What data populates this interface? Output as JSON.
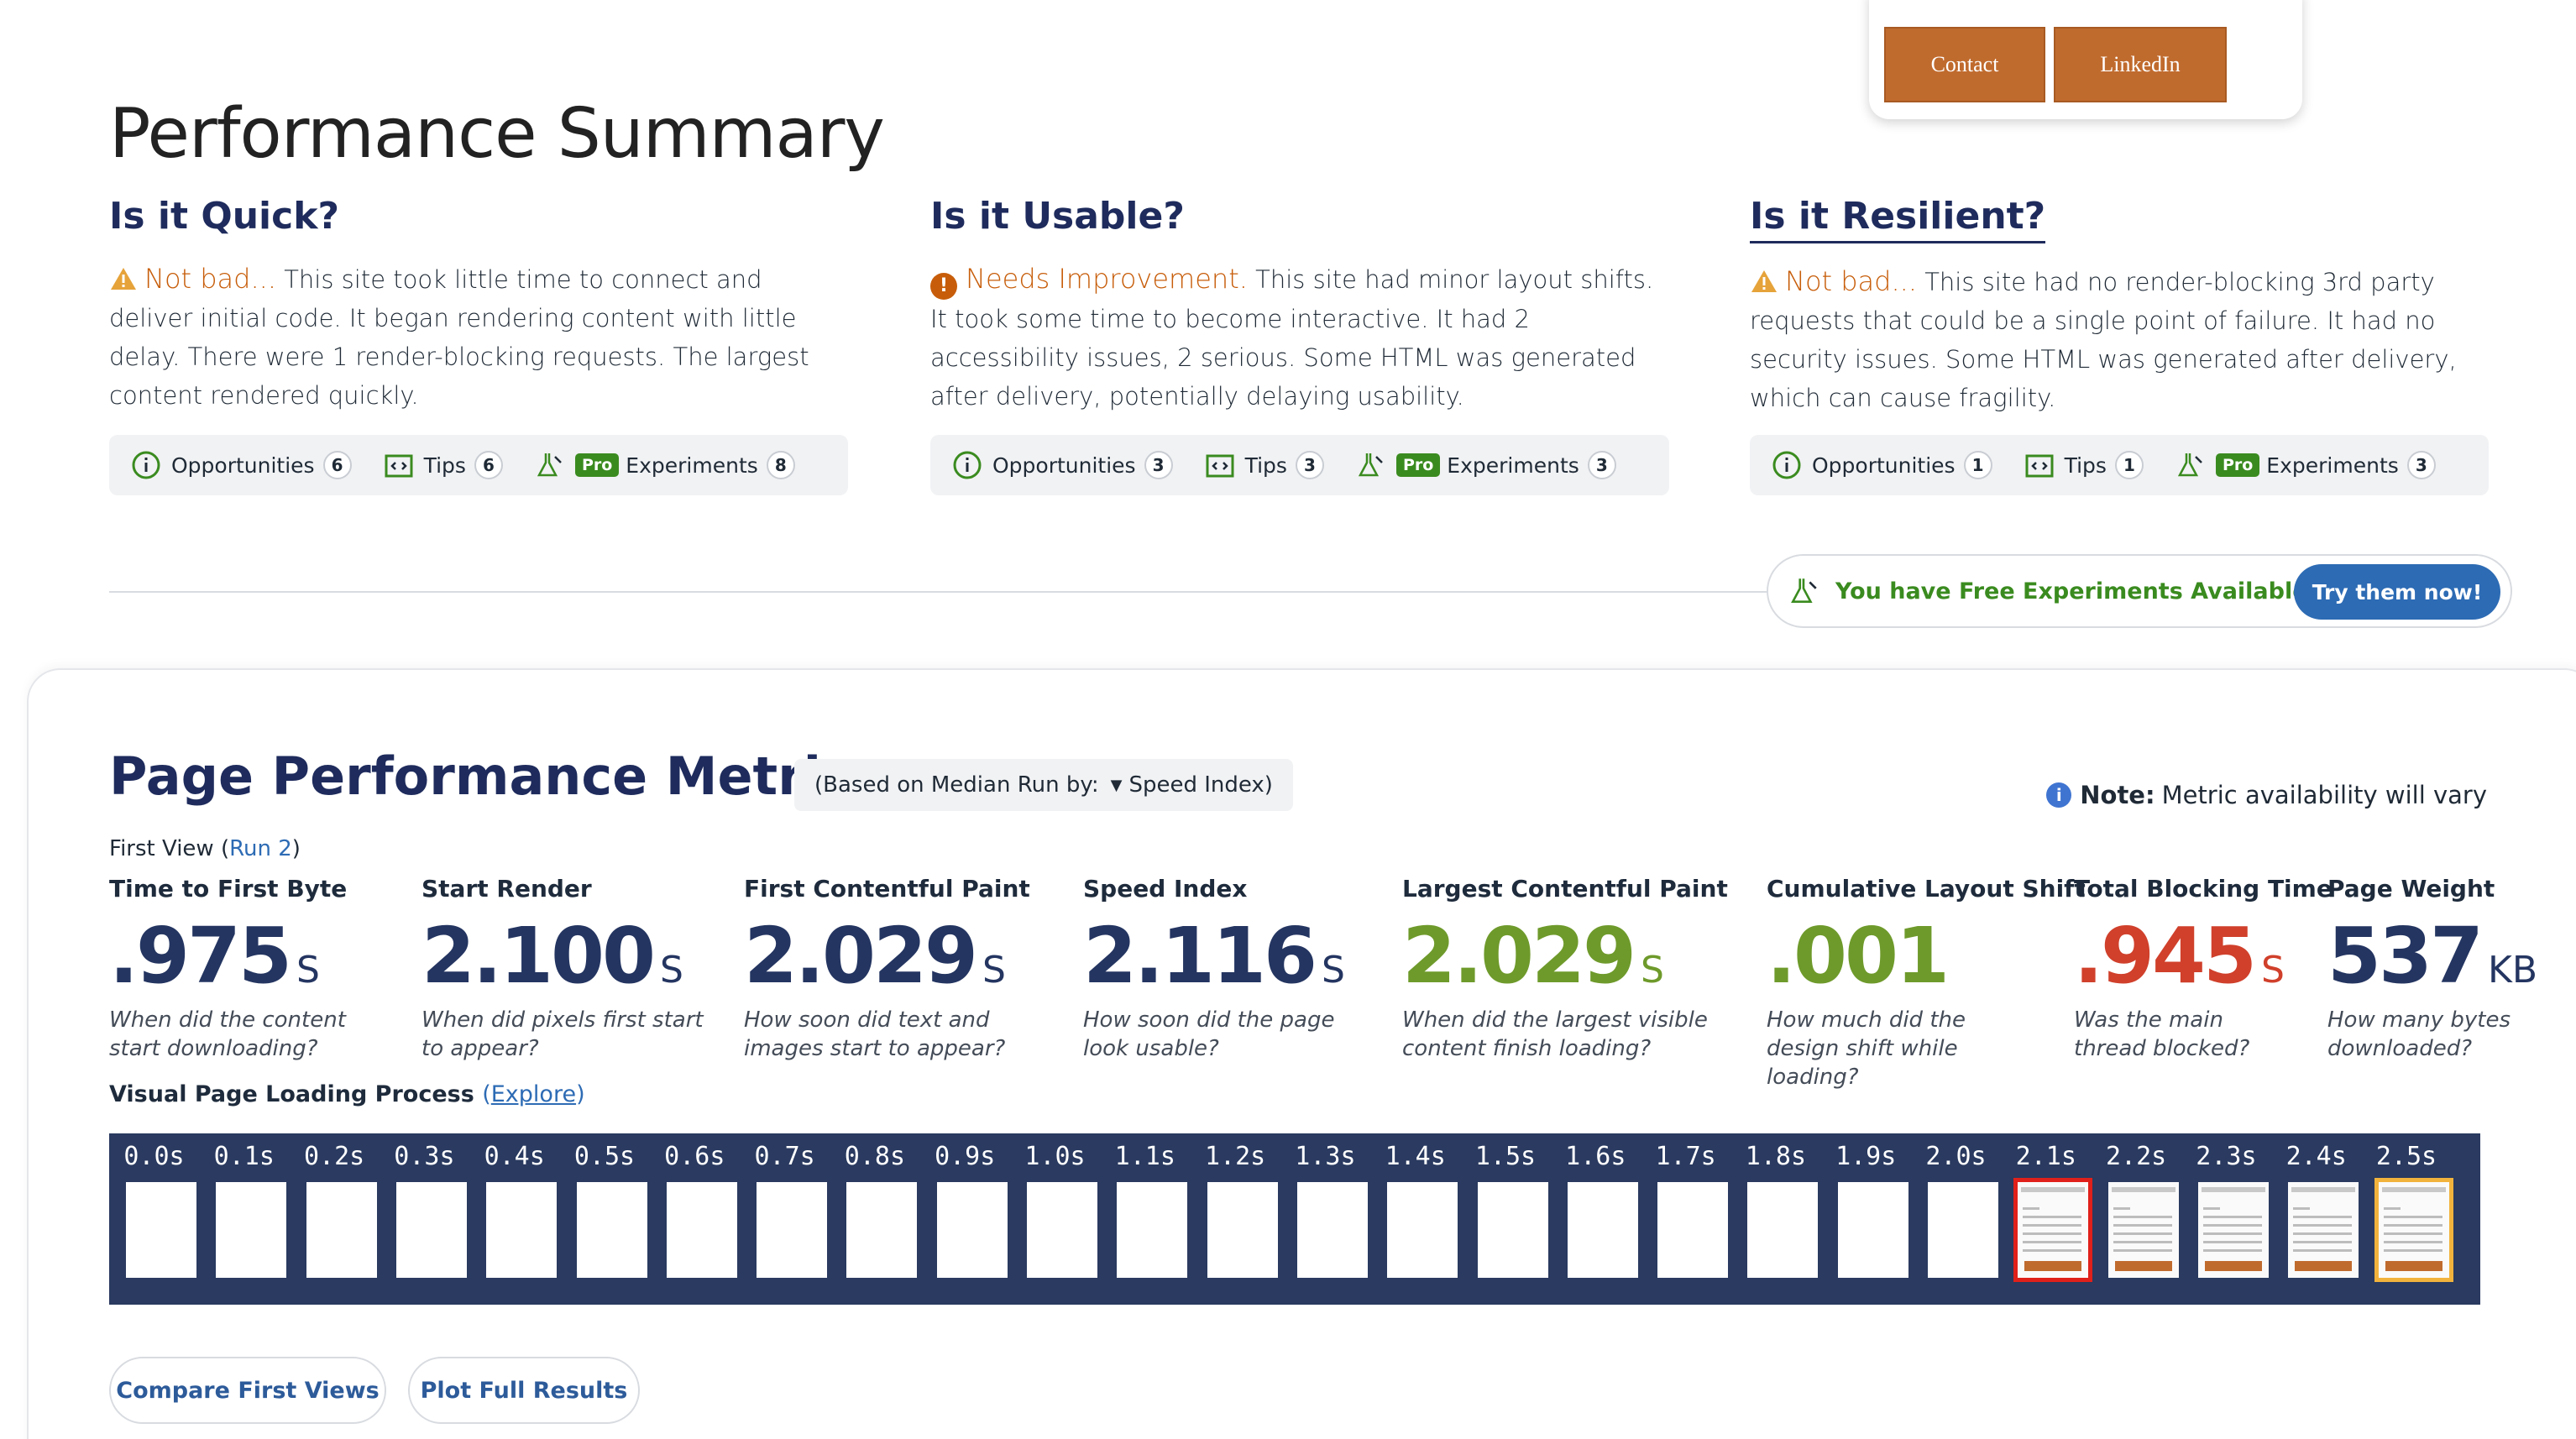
{
  "top_card": {
    "contact_label": "Contact",
    "linkedin_label": "LinkedIn"
  },
  "page_title": "Performance Summary",
  "summary": [
    {
      "heading": "Is it Quick?",
      "verdict": "Not bad...",
      "verdict_icon": "warning-triangle-icon",
      "text": "This site took little time to connect and deliver initial code. It began rendering content with little delay. There were 1 render-blocking requests. The largest content rendered quickly.",
      "opportunities_label": "Opportunities",
      "opportunities_count": "6",
      "tips_label": "Tips",
      "tips_count": "6",
      "pro_label": "Pro",
      "experiments_label": "Experiments",
      "experiments_count": "8"
    },
    {
      "heading": "Is it Usable?",
      "verdict": "Needs Improvement.",
      "verdict_icon": "alert-circle-icon",
      "text": "This site had minor layout shifts. It took some time to become interactive. It had 2 accessibility issues, 2 serious. Some HTML was generated after delivery, potentially delaying usability.",
      "opportunities_label": "Opportunities",
      "opportunities_count": "3",
      "tips_label": "Tips",
      "tips_count": "3",
      "pro_label": "Pro",
      "experiments_label": "Experiments",
      "experiments_count": "3"
    },
    {
      "heading": "Is it Resilient?",
      "verdict": "Not bad...",
      "verdict_icon": "warning-triangle-icon",
      "text": "This site had no render-blocking 3rd party requests that could be a single point of failure. It had no security issues. Some HTML was generated after delivery, which can cause fragility.",
      "opportunities_label": "Opportunities",
      "opportunities_count": "1",
      "tips_label": "Tips",
      "tips_count": "1",
      "pro_label": "Pro",
      "experiments_label": "Experiments",
      "experiments_count": "3"
    }
  ],
  "free_experiments": {
    "text": "You have Free Experiments Available!",
    "button": "Try them now!"
  },
  "metrics_section": {
    "title": "Page Performance Metrics",
    "median_prefix": "(Based on Median Run by:",
    "median_value": "Speed Index)",
    "note_bold": "Note:",
    "note_text": "Metric availability will vary",
    "first_view": "First View (",
    "run_link": "Run 2",
    "first_view_close": ")"
  },
  "metrics": [
    {
      "label": "Time to First Byte",
      "value": ".975",
      "unit": "S",
      "desc": "When did the content start downloading?",
      "status": "neutral"
    },
    {
      "label": "Start Render",
      "value": "2.100",
      "unit": "S",
      "desc": "When did pixels first start to appear?",
      "status": "neutral"
    },
    {
      "label": "First Contentful Paint",
      "value": "2.029",
      "unit": "S",
      "desc": "How soon did text and images start to appear?",
      "status": "neutral"
    },
    {
      "label": "Speed Index",
      "value": "2.116",
      "unit": "S",
      "desc": "How soon did the page look usable?",
      "status": "neutral"
    },
    {
      "label": "Largest Contentful Paint",
      "value": "2.029",
      "unit": "S",
      "desc": "When did the largest visible content finish loading?",
      "status": "good"
    },
    {
      "label": "Cumulative Layout Shift",
      "value": ".001",
      "unit": "",
      "desc": "How much did the design shift while loading?",
      "status": "good"
    },
    {
      "label": "Total Blocking Time",
      "value": ".945",
      "unit": "S",
      "desc": "Was the main thread blocked?",
      "status": "poor"
    },
    {
      "label": "Page Weight",
      "value": "537",
      "unit": "KB",
      "desc": "How many bytes downloaded?",
      "status": "neutral"
    }
  ],
  "visual_loading": {
    "label": "Visual Page Loading Process",
    "explore_open": "(",
    "explore": "Explore",
    "explore_close": ")"
  },
  "filmstrip": {
    "times": [
      "0.0s",
      "0.1s",
      "0.2s",
      "0.3s",
      "0.4s",
      "0.5s",
      "0.6s",
      "0.7s",
      "0.8s",
      "0.9s",
      "1.0s",
      "1.1s",
      "1.2s",
      "1.3s",
      "1.4s",
      "1.5s",
      "1.6s",
      "1.7s",
      "1.8s",
      "1.9s",
      "2.0s",
      "2.1s",
      "2.2s",
      "2.3s",
      "2.4s",
      "2.5s"
    ],
    "first_content_frame": "2.1s",
    "last_frame": "2.5s",
    "colors": {
      "first_content_border": "#e0201a",
      "last_frame_border": "#f2b33d"
    }
  },
  "bottom_buttons": {
    "compare": "Compare First Views",
    "plot": "Plot Full Results"
  },
  "colors": {
    "navy": "#1e2b5c",
    "accent_orange": "#c06b2e",
    "good": "#6e9a2b",
    "poor": "#d0402b",
    "pro_green": "#3a8b1f",
    "link_blue": "#2d6bb4"
  }
}
